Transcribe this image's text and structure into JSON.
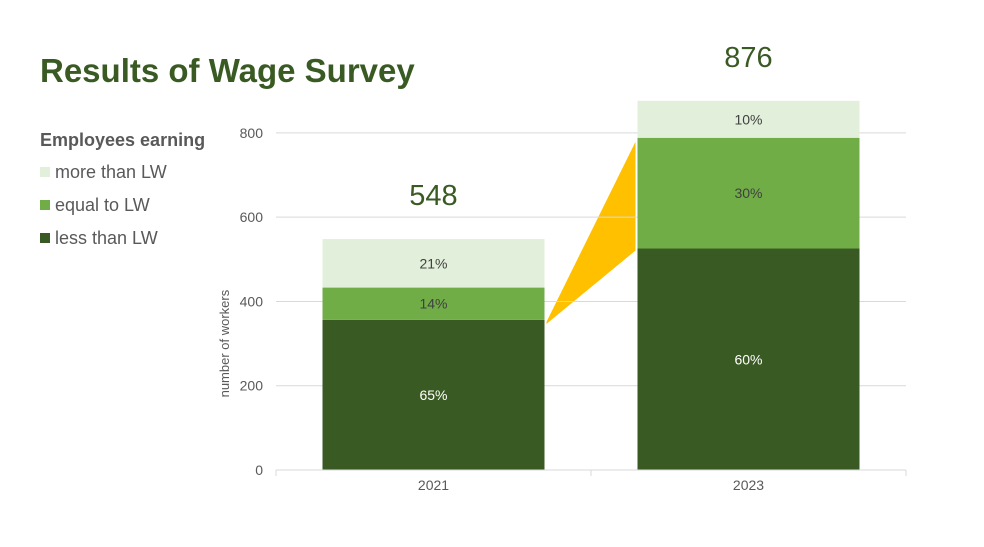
{
  "chart_data": {
    "type": "bar",
    "stacked": true,
    "title": "Results of Wage Survey",
    "ylabel": "number of workers",
    "xlabel": "",
    "ylim": [
      0,
      900
    ],
    "yticks": [
      0,
      200,
      400,
      600,
      800
    ],
    "ytick_labels": [
      "0",
      "200",
      "400",
      "600",
      "800"
    ],
    "grid": true,
    "categories": [
      "2021",
      "2023"
    ],
    "totals": [
      548,
      876
    ],
    "total_labels": [
      "548",
      "876"
    ],
    "legend_title": "Employees earning",
    "legend_position": "left",
    "series": [
      {
        "name": "less than LW",
        "color": "#3a5a23",
        "percent_values": [
          65,
          60
        ],
        "labels": [
          "65%",
          "60%"
        ],
        "label_color": "#ffffff"
      },
      {
        "name": "equal to LW",
        "color": "#70ad47",
        "percent_values": [
          14,
          30
        ],
        "labels": [
          "14%",
          "30%"
        ],
        "label_color": "#404040"
      },
      {
        "name": "more than LW",
        "color": "#e2efda",
        "percent_values": [
          21,
          10
        ],
        "labels": [
          "21%",
          "10%"
        ],
        "label_color": "#404040"
      }
    ],
    "connector": {
      "from_category": "2021",
      "to_category": "2023",
      "color": "#ffc000"
    },
    "colors": {
      "title": "#3a5a23",
      "total_label": "#3a5a23",
      "axis_text": "#595959",
      "gridline": "#d9d9d9"
    }
  }
}
